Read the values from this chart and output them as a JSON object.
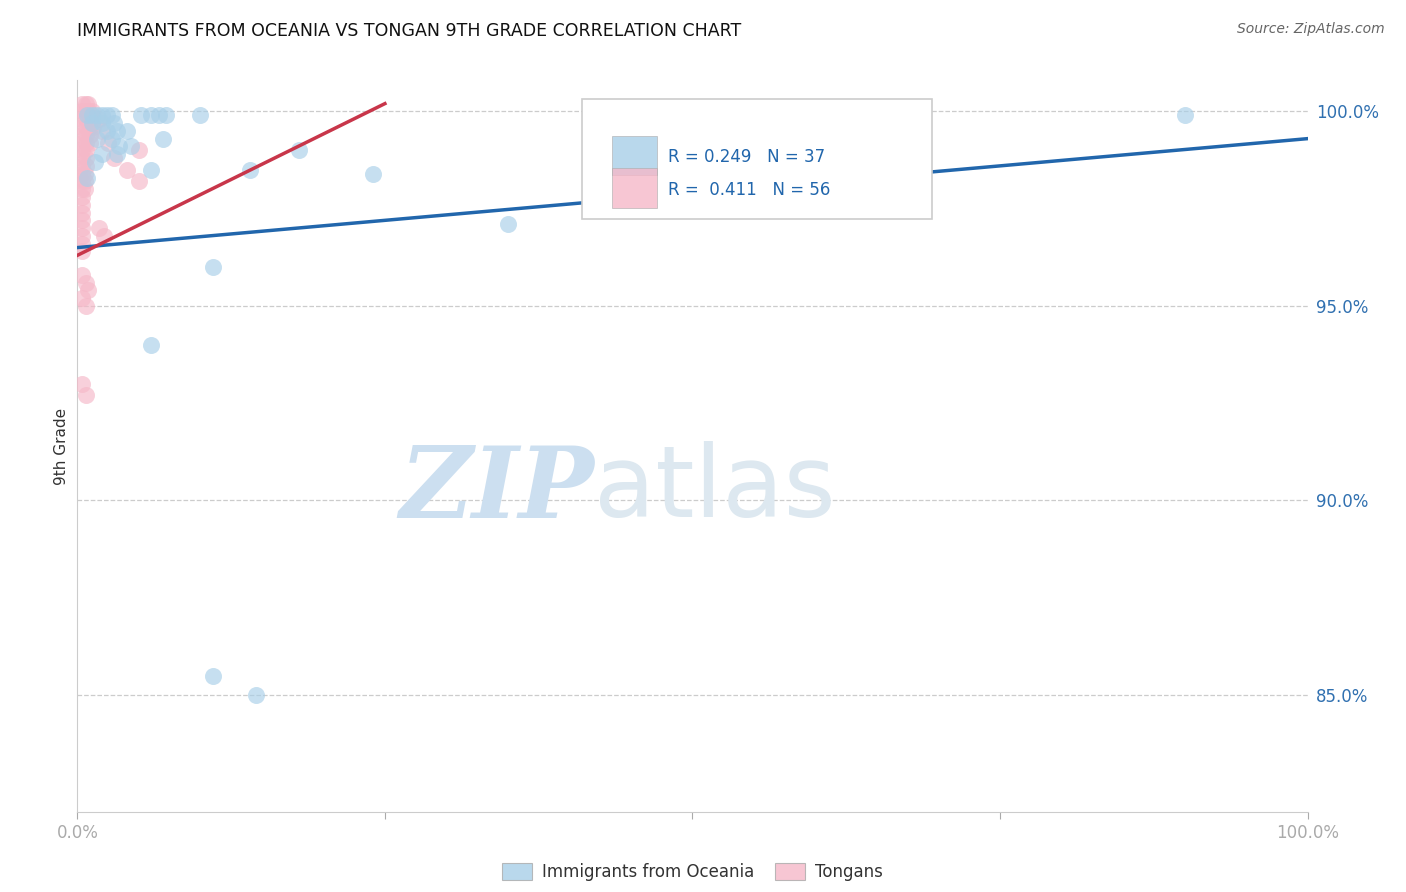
{
  "title": "IMMIGRANTS FROM OCEANIA VS TONGAN 9TH GRADE CORRELATION CHART",
  "source": "Source: ZipAtlas.com",
  "ylabel": "9th Grade",
  "y_tick_labels": [
    "85.0%",
    "90.0%",
    "95.0%",
    "100.0%"
  ],
  "y_tick_values": [
    0.85,
    0.9,
    0.95,
    1.0
  ],
  "x_range": [
    0.0,
    1.0
  ],
  "y_range": [
    0.82,
    1.008
  ],
  "legend_blue_r": "R = 0.249",
  "legend_blue_n": "N = 37",
  "legend_pink_r": "R =  0.411",
  "legend_pink_n": "N = 56",
  "blue_color": "#a8cfe8",
  "pink_color": "#f5b8c8",
  "blue_line_color": "#2166ac",
  "pink_line_color": "#c8364a",
  "blue_scatter": [
    [
      0.008,
      0.999
    ],
    [
      0.012,
      0.999
    ],
    [
      0.016,
      0.999
    ],
    [
      0.02,
      0.999
    ],
    [
      0.024,
      0.999
    ],
    [
      0.028,
      0.999
    ],
    [
      0.052,
      0.999
    ],
    [
      0.06,
      0.999
    ],
    [
      0.066,
      0.999
    ],
    [
      0.072,
      0.999
    ],
    [
      0.1,
      0.999
    ],
    [
      0.012,
      0.997
    ],
    [
      0.02,
      0.997
    ],
    [
      0.03,
      0.997
    ],
    [
      0.024,
      0.995
    ],
    [
      0.032,
      0.995
    ],
    [
      0.04,
      0.995
    ],
    [
      0.016,
      0.993
    ],
    [
      0.028,
      0.993
    ],
    [
      0.034,
      0.991
    ],
    [
      0.044,
      0.991
    ],
    [
      0.02,
      0.989
    ],
    [
      0.032,
      0.989
    ],
    [
      0.014,
      0.987
    ],
    [
      0.06,
      0.985
    ],
    [
      0.008,
      0.983
    ],
    [
      0.35,
      0.971
    ],
    [
      0.11,
      0.96
    ],
    [
      0.64,
      0.999
    ],
    [
      0.9,
      0.999
    ],
    [
      0.06,
      0.94
    ],
    [
      0.11,
      0.855
    ],
    [
      0.145,
      0.85
    ],
    [
      0.24,
      0.984
    ],
    [
      0.14,
      0.985
    ],
    [
      0.18,
      0.99
    ],
    [
      0.07,
      0.993
    ]
  ],
  "pink_scatter": [
    [
      0.004,
      1.002
    ],
    [
      0.007,
      1.002
    ],
    [
      0.009,
      1.002
    ],
    [
      0.004,
      1.0
    ],
    [
      0.007,
      1.0
    ],
    [
      0.009,
      1.0
    ],
    [
      0.012,
      1.0
    ],
    [
      0.004,
      0.998
    ],
    [
      0.007,
      0.998
    ],
    [
      0.01,
      0.998
    ],
    [
      0.004,
      0.996
    ],
    [
      0.007,
      0.996
    ],
    [
      0.01,
      0.996
    ],
    [
      0.013,
      0.996
    ],
    [
      0.004,
      0.994
    ],
    [
      0.007,
      0.994
    ],
    [
      0.01,
      0.994
    ],
    [
      0.004,
      0.992
    ],
    [
      0.007,
      0.992
    ],
    [
      0.01,
      0.992
    ],
    [
      0.004,
      0.99
    ],
    [
      0.007,
      0.99
    ],
    [
      0.004,
      0.988
    ],
    [
      0.007,
      0.988
    ],
    [
      0.004,
      0.986
    ],
    [
      0.007,
      0.986
    ],
    [
      0.004,
      0.984
    ],
    [
      0.006,
      0.984
    ],
    [
      0.004,
      0.982
    ],
    [
      0.006,
      0.982
    ],
    [
      0.004,
      0.98
    ],
    [
      0.006,
      0.98
    ],
    [
      0.004,
      0.978
    ],
    [
      0.004,
      0.976
    ],
    [
      0.004,
      0.974
    ],
    [
      0.004,
      0.972
    ],
    [
      0.004,
      0.97
    ],
    [
      0.004,
      0.968
    ],
    [
      0.004,
      0.966
    ],
    [
      0.004,
      0.964
    ],
    [
      0.02,
      0.995
    ],
    [
      0.025,
      0.992
    ],
    [
      0.03,
      0.988
    ],
    [
      0.04,
      0.985
    ],
    [
      0.05,
      0.982
    ],
    [
      0.018,
      0.998
    ],
    [
      0.05,
      0.99
    ],
    [
      0.004,
      0.958
    ],
    [
      0.007,
      0.956
    ],
    [
      0.009,
      0.954
    ],
    [
      0.018,
      0.97
    ],
    [
      0.022,
      0.968
    ],
    [
      0.004,
      0.952
    ],
    [
      0.007,
      0.95
    ],
    [
      0.004,
      0.93
    ],
    [
      0.007,
      0.927
    ]
  ],
  "blue_trend_x": [
    0.0,
    1.0
  ],
  "blue_trend_y": [
    0.965,
    0.993
  ],
  "pink_trend_x": [
    0.0,
    0.25
  ],
  "pink_trend_y": [
    0.963,
    1.002
  ],
  "watermark_zip": "ZIP",
  "watermark_atlas": "atlas"
}
